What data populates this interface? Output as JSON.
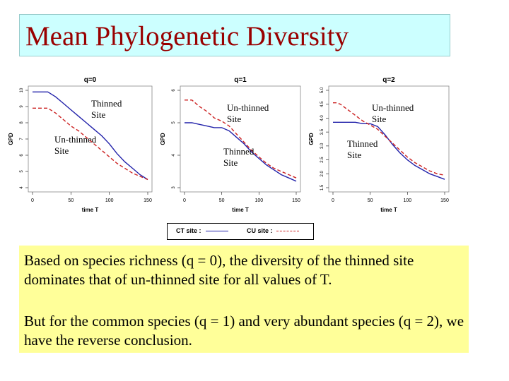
{
  "slide": {
    "title": "Mean Phylogenetic Diversity",
    "para1": "Based on species richness (q = 0), the diversity of the thinned site dominates that of un-thinned site for all values of T.",
    "para2": "But for the common species (q = 1) and very abundant species (q = 2), we have the reverse conclusion."
  },
  "legend": {
    "ct_label": "CT site :",
    "cu_label": "CU site :"
  },
  "notes": {
    "q0_thinned": [
      "Thinned",
      "Site"
    ],
    "q0_unthinned": [
      "Un-thinned",
      "Site"
    ],
    "q1_unthinned": [
      "Un-thinned",
      "Site"
    ],
    "q1_thinned": [
      "Thinned",
      "Site"
    ],
    "q2_unthinned": [
      "Un-thinned",
      "Site"
    ],
    "q2_thinned": [
      "Thinned",
      "Site"
    ]
  },
  "colors": {
    "ct": "#2222aa",
    "cu": "#cc2222"
  },
  "chart_data": [
    {
      "type": "line",
      "title": "q=0",
      "xlabel": "time T",
      "ylabel": "GPD",
      "xlim": [
        0,
        150
      ],
      "ylim": [
        4,
        10
      ],
      "xticks": [
        0,
        50,
        100,
        150
      ],
      "yticks": [
        4,
        5,
        6,
        7,
        8,
        9,
        10
      ],
      "series": [
        {
          "name": "CT site",
          "style": "solid",
          "x": [
            0,
            5,
            10,
            20,
            30,
            40,
            50,
            60,
            70,
            80,
            90,
            100,
            110,
            120,
            130,
            140,
            150
          ],
          "y": [
            9.9,
            9.9,
            9.9,
            9.9,
            9.6,
            9.2,
            8.8,
            8.4,
            8.0,
            7.6,
            7.2,
            6.7,
            6.1,
            5.6,
            5.2,
            4.8,
            4.5
          ]
        },
        {
          "name": "CU site",
          "style": "dashed",
          "x": [
            0,
            5,
            10,
            20,
            30,
            40,
            50,
            60,
            70,
            80,
            90,
            100,
            110,
            120,
            130,
            140,
            150
          ],
          "y": [
            8.9,
            8.9,
            8.9,
            8.9,
            8.6,
            8.2,
            7.8,
            7.5,
            7.1,
            6.7,
            6.3,
            5.9,
            5.5,
            5.2,
            4.9,
            4.7,
            4.5
          ]
        }
      ]
    },
    {
      "type": "line",
      "title": "q=1",
      "xlabel": "time T",
      "ylabel": "GPD",
      "xlim": [
        0,
        150
      ],
      "ylim": [
        3.0,
        6.0
      ],
      "xticks": [
        0,
        50,
        100,
        150
      ],
      "yticks": [
        3,
        4,
        5,
        6
      ],
      "series": [
        {
          "name": "CT site",
          "style": "solid",
          "x": [
            0,
            5,
            10,
            20,
            30,
            40,
            50,
            60,
            70,
            80,
            90,
            100,
            110,
            120,
            130,
            140,
            150
          ],
          "y": [
            5.0,
            5.0,
            5.0,
            4.95,
            4.9,
            4.85,
            4.85,
            4.75,
            4.55,
            4.35,
            4.1,
            3.9,
            3.7,
            3.55,
            3.4,
            3.3,
            3.2
          ]
        },
        {
          "name": "CU site",
          "style": "dashed",
          "x": [
            0,
            5,
            10,
            20,
            30,
            40,
            50,
            60,
            70,
            80,
            90,
            100,
            110,
            120,
            130,
            140,
            150
          ],
          "y": [
            5.7,
            5.7,
            5.7,
            5.5,
            5.35,
            5.15,
            5.05,
            4.9,
            4.65,
            4.4,
            4.15,
            3.95,
            3.75,
            3.6,
            3.5,
            3.4,
            3.3
          ]
        }
      ]
    },
    {
      "type": "line",
      "title": "q=2",
      "xlabel": "time T",
      "ylabel": "GPD",
      "xlim": [
        0,
        150
      ],
      "ylim": [
        1.5,
        5.0
      ],
      "xticks": [
        0,
        50,
        100,
        150
      ],
      "yticks": [
        1.5,
        2.0,
        2.5,
        3.0,
        3.5,
        4.0,
        4.5,
        5.0
      ],
      "series": [
        {
          "name": "CT site",
          "style": "solid",
          "x": [
            0,
            5,
            10,
            20,
            30,
            40,
            50,
            60,
            70,
            80,
            90,
            100,
            110,
            120,
            130,
            140,
            150
          ],
          "y": [
            3.85,
            3.85,
            3.85,
            3.85,
            3.85,
            3.8,
            3.8,
            3.7,
            3.4,
            3.05,
            2.75,
            2.5,
            2.3,
            2.15,
            2.0,
            1.9,
            1.8
          ]
        },
        {
          "name": "CU site",
          "style": "dashed",
          "x": [
            0,
            5,
            10,
            20,
            30,
            40,
            50,
            60,
            70,
            80,
            90,
            100,
            110,
            120,
            130,
            140,
            150
          ],
          "y": [
            4.55,
            4.55,
            4.5,
            4.3,
            4.1,
            3.9,
            3.75,
            3.6,
            3.35,
            3.1,
            2.85,
            2.6,
            2.4,
            2.25,
            2.1,
            2.0,
            1.95
          ]
        }
      ]
    }
  ]
}
